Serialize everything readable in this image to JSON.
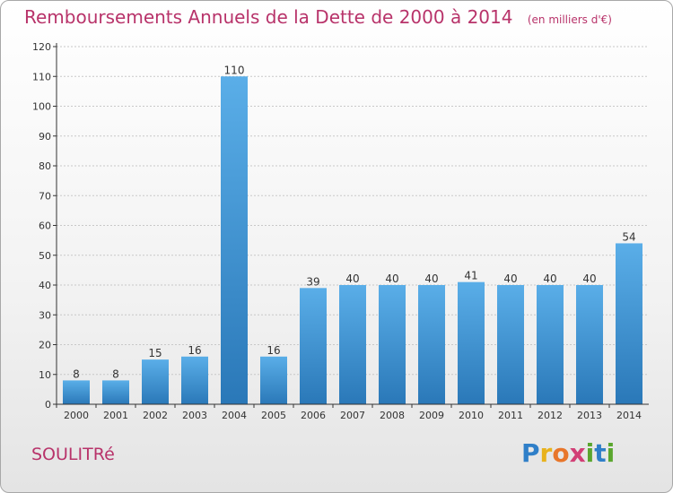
{
  "title": "Remboursements Annuels de la Dette de 2000 à 2014",
  "unit": "(en milliers d'€)",
  "commune": "SOULITRé",
  "logo": [
    "P",
    "r",
    "o",
    "x",
    "i",
    "t",
    "i"
  ],
  "colors": {
    "title": "#b8336a",
    "bar_top": "#5aaee8",
    "bar_bottom": "#2a78b8",
    "grid": "#c8c8c8",
    "axis": "#333333"
  },
  "chart_data": {
    "type": "bar",
    "categories": [
      "2000",
      "2001",
      "2002",
      "2003",
      "2004",
      "2005",
      "2006",
      "2007",
      "2008",
      "2009",
      "2010",
      "2011",
      "2012",
      "2013",
      "2014"
    ],
    "values": [
      8,
      8,
      15,
      16,
      110,
      16,
      39,
      40,
      40,
      40,
      41,
      40,
      40,
      40,
      54
    ],
    "ylim": [
      0,
      120
    ],
    "yticks": [
      0,
      10,
      20,
      30,
      40,
      50,
      60,
      70,
      80,
      90,
      100,
      110,
      120
    ],
    "grid": true,
    "data_labels": true
  }
}
